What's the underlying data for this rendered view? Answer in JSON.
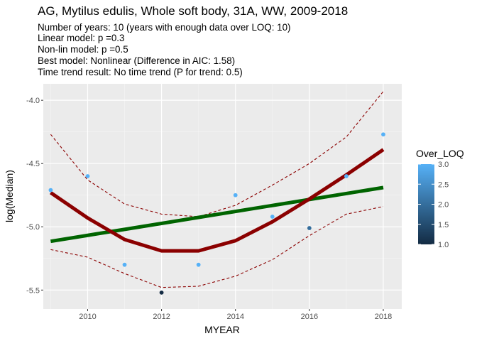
{
  "chart_data": {
    "type": "scatter",
    "title": "AG, Mytilus edulis, Whole soft body, 31A, WW, 2009-2018",
    "subtitle_lines": [
      "Number of years: 10 (years with enough data over LOQ: 10)",
      "Linear model: p =0.3",
      "Non-lin model: p =0.5",
      "Best model: Nonlinear (Difference in AIC: 1.58)",
      "Time trend result: No time trend (P for trend: 0.5)"
    ],
    "xlabel": "MYEAR",
    "ylabel": "log(Median)",
    "xlim": [
      2008.8,
      2018.5
    ],
    "ylim": [
      -5.65,
      -3.87
    ],
    "x_ticks": [
      2010,
      2012,
      2014,
      2016,
      2018
    ],
    "x_tick_labels": [
      "2010",
      "2012",
      "2014",
      "2016",
      "2018"
    ],
    "y_ticks": [
      -4.0,
      -4.5,
      -5.0,
      -5.5
    ],
    "y_tick_labels": [
      "-4.0",
      "-4.5",
      "-5.0",
      "-5.5"
    ],
    "grid": true,
    "points": [
      {
        "x": 2009,
        "y": -4.71,
        "over_loq": 3
      },
      {
        "x": 2010,
        "y": -4.6,
        "over_loq": 3
      },
      {
        "x": 2011,
        "y": -5.3,
        "over_loq": 3
      },
      {
        "x": 2012,
        "y": -5.52,
        "over_loq": 1
      },
      {
        "x": 2013,
        "y": -5.3,
        "over_loq": 3
      },
      {
        "x": 2014,
        "y": -4.75,
        "over_loq": 3
      },
      {
        "x": 2015,
        "y": -4.92,
        "over_loq": 3
      },
      {
        "x": 2016,
        "y": -5.01,
        "over_loq": 2
      },
      {
        "x": 2017,
        "y": -4.6,
        "over_loq": 3
      },
      {
        "x": 2018,
        "y": -4.27,
        "over_loq": 3
      }
    ],
    "series": [
      {
        "kind": "linear-fit",
        "color": "#006400",
        "x": [
          2009,
          2018
        ],
        "y": [
          -5.115,
          -4.69
        ]
      },
      {
        "kind": "nonlinear-fit",
        "color": "#8b0000",
        "x": [
          2009,
          2010,
          2011,
          2012,
          2013,
          2014,
          2015,
          2016,
          2017,
          2018
        ],
        "y": [
          -4.73,
          -4.93,
          -5.1,
          -5.19,
          -5.19,
          -5.11,
          -4.96,
          -4.78,
          -4.59,
          -4.39
        ]
      },
      {
        "kind": "upper-bound",
        "color": "#8b0000",
        "x": [
          2009,
          2010,
          2011,
          2012,
          2013,
          2014,
          2015,
          2016,
          2017,
          2018
        ],
        "y": [
          -4.27,
          -4.63,
          -4.82,
          -4.9,
          -4.92,
          -4.83,
          -4.67,
          -4.5,
          -4.29,
          -3.93
        ]
      },
      {
        "kind": "lower-bound",
        "color": "#8b0000",
        "x": [
          2009,
          2010,
          2011,
          2012,
          2013,
          2014,
          2015,
          2016,
          2017,
          2018
        ],
        "y": [
          -5.18,
          -5.24,
          -5.37,
          -5.48,
          -5.47,
          -5.39,
          -5.26,
          -5.07,
          -4.9,
          -4.84
        ]
      }
    ],
    "legend": {
      "title": "Over_LOQ",
      "placement": "right",
      "ticks": [
        1.0,
        1.5,
        2.0,
        2.5,
        3.0
      ],
      "tick_labels": [
        "1.0",
        "1.5",
        "2.0",
        "2.5",
        "3.0"
      ],
      "range": [
        1,
        3
      ],
      "color_low": "#132b43",
      "color_high": "#56b1f7"
    }
  }
}
